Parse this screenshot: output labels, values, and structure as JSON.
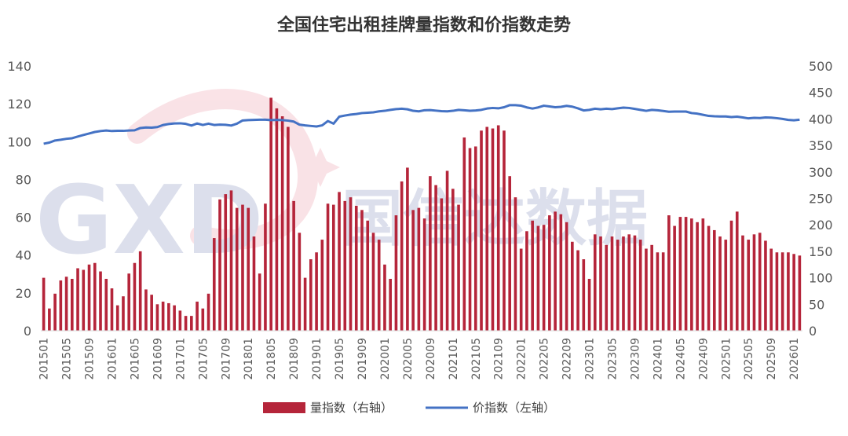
{
  "watermark": {
    "text_latin": "GXD",
    "text_cn": "国信达数据"
  },
  "chart_data": {
    "type": "bar",
    "title": "全国住宅出租挂牌量指数和价指数走势",
    "x_tick_labels": [
      "201501",
      "201505",
      "201509",
      "201601",
      "201605",
      "201609",
      "201701",
      "201705",
      "201709",
      "201801",
      "201805",
      "201809",
      "201901",
      "201905",
      "201909",
      "202001",
      "202005",
      "202009",
      "202101",
      "202105",
      "202109",
      "202201",
      "202205",
      "202209",
      "202301",
      "202305",
      "202309",
      "202401",
      "202405",
      "202409",
      "202501",
      "202505",
      "202509",
      "202601"
    ],
    "y_left": {
      "ticks": [
        "0",
        "20",
        "40",
        "60",
        "80",
        "100",
        "120",
        "140"
      ],
      "min": 0,
      "max": 140
    },
    "y_right": {
      "ticks": [
        "0",
        "50",
        "100",
        "150",
        "200",
        "250",
        "300",
        "350",
        "400",
        "450",
        "500"
      ],
      "min": 0,
      "max": 500
    },
    "grid": false,
    "legend_position": "bottom",
    "series": [
      {
        "name": "量指数（右轴）",
        "type": "bar",
        "axis": "right",
        "color": "#B5253A",
        "values": [
          100,
          42,
          70,
          95,
          102,
          98,
          118,
          115,
          125,
          128,
          112,
          98,
          80,
          48,
          65,
          108,
          128,
          150,
          78,
          68,
          50,
          55,
          52,
          48,
          38,
          28,
          28,
          55,
          42,
          70,
          175,
          248,
          258,
          265,
          232,
          238,
          232,
          178,
          108,
          240,
          440,
          420,
          405,
          385,
          245,
          185,
          100,
          135,
          148,
          172,
          240,
          238,
          262,
          245,
          252,
          236,
          228,
          208,
          185,
          172,
          125,
          98,
          218,
          282,
          308,
          228,
          232,
          212,
          292,
          275,
          250,
          302,
          268,
          238,
          365,
          345,
          348,
          378,
          385,
          382,
          388,
          378,
          292,
          252,
          155,
          188,
          208,
          198,
          200,
          218,
          225,
          220,
          205,
          168,
          152,
          135,
          98,
          182,
          178,
          162,
          178,
          172,
          178,
          182,
          180,
          172,
          155,
          162,
          148,
          148,
          218,
          198,
          215,
          215,
          212,
          205,
          212,
          198,
          190,
          178,
          172,
          208,
          225,
          180,
          172,
          182,
          185,
          170,
          155,
          148,
          148,
          148,
          145,
          142
        ]
      },
      {
        "name": "价指数（左轴）",
        "type": "line",
        "axis": "left",
        "color": "#4472C4",
        "values": [
          98.9,
          99.5,
          100.6,
          101.0,
          101.5,
          101.8,
          102.7,
          103.5,
          104.3,
          105.1,
          105.6,
          105.9,
          105.6,
          105.7,
          105.7,
          105.9,
          106.0,
          107.2,
          107.5,
          107.4,
          107.7,
          108.8,
          109.3,
          109.6,
          109.7,
          109.4,
          108.5,
          109.6,
          108.8,
          109.5,
          108.8,
          109.0,
          108.9,
          108.5,
          109.5,
          111.2,
          111.4,
          111.5,
          111.6,
          111.6,
          111.4,
          111.5,
          111.4,
          111.1,
          110.6,
          109.0,
          108.6,
          108.3,
          108.0,
          108.6,
          110.9,
          109.5,
          113.2,
          113.8,
          114.3,
          114.6,
          115.1,
          115.3,
          115.5,
          116.0,
          116.3,
          116.8,
          117.2,
          117.4,
          117.1,
          116.3,
          116.0,
          116.6,
          116.7,
          116.4,
          116.1,
          116.0,
          116.3,
          116.8,
          116.6,
          116.3,
          116.5,
          116.8,
          117.5,
          117.8,
          117.6,
          118.2,
          119.3,
          119.3,
          119.0,
          118.1,
          117.5,
          118.1,
          119.0,
          118.6,
          118.2,
          118.4,
          118.9,
          118.5,
          117.6,
          116.5,
          116.8,
          117.4,
          117.1,
          117.4,
          117.2,
          117.6,
          118.0,
          117.8,
          117.3,
          116.8,
          116.3,
          116.8,
          116.6,
          116.2,
          115.8,
          115.9,
          115.9,
          115.9,
          115.1,
          114.8,
          114.2,
          113.6,
          113.4,
          113.3,
          113.3,
          113.0,
          113.2,
          112.8,
          112.3,
          112.6,
          112.5,
          112.8,
          112.7,
          112.4,
          112.0,
          111.5,
          111.3,
          111.6
        ]
      }
    ]
  }
}
